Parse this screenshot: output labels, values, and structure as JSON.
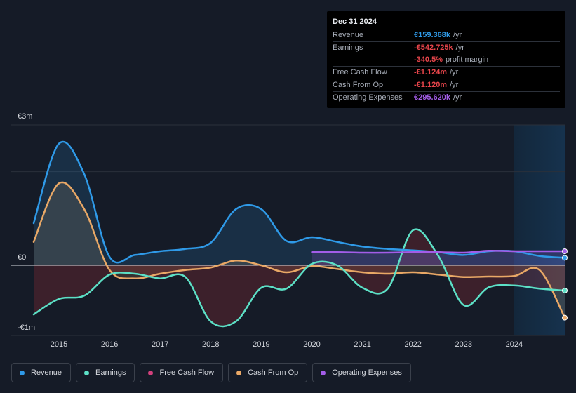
{
  "tooltip": {
    "date": "Dec 31 2024",
    "rows": [
      {
        "label": "Revenue",
        "value": "€159.368k",
        "unit": "/yr",
        "color": "#2f9ae8"
      },
      {
        "label": "Earnings",
        "value": "-€542.725k",
        "unit": "/yr",
        "color": "#e8454b"
      },
      {
        "label": "",
        "value": "-340.5%",
        "unit": "profit margin",
        "color": "#e8454b"
      },
      {
        "label": "Free Cash Flow",
        "value": "-€1.124m",
        "unit": "/yr",
        "color": "#e8454b"
      },
      {
        "label": "Cash From Op",
        "value": "-€1.120m",
        "unit": "/yr",
        "color": "#e8454b"
      },
      {
        "label": "Operating Expenses",
        "value": "€295.620k",
        "unit": "/yr",
        "color": "#a35de8"
      }
    ]
  },
  "chart_data": {
    "type": "line",
    "title": "",
    "xlabel": "",
    "ylabel": "",
    "currency_unit": "€",
    "ylim": [
      -1.5,
      3
    ],
    "xlim": [
      2014.5,
      2025.0
    ],
    "y_tick_labels": [
      {
        "value": 3,
        "label": "€3m"
      },
      {
        "value": 0,
        "label": "€0"
      },
      {
        "value": -1,
        "label": "-€1m"
      }
    ],
    "x_tick_labels": [
      "2015",
      "2016",
      "2017",
      "2018",
      "2019",
      "2020",
      "2021",
      "2022",
      "2023",
      "2024"
    ],
    "forecast_shade_start": 2024.0,
    "legend": [
      "Revenue",
      "Earnings",
      "Free Cash Flow",
      "Cash From Op",
      "Operating Expenses"
    ],
    "series": [
      {
        "name": "Revenue",
        "color": "#2f9ae8",
        "fill": true,
        "points": [
          [
            2014.5,
            0.9
          ],
          [
            2015.0,
            2.6
          ],
          [
            2015.5,
            1.95
          ],
          [
            2016.0,
            0.18
          ],
          [
            2016.5,
            0.22
          ],
          [
            2017.0,
            0.3
          ],
          [
            2017.5,
            0.35
          ],
          [
            2018.0,
            0.48
          ],
          [
            2018.5,
            1.2
          ],
          [
            2019.0,
            1.2
          ],
          [
            2019.5,
            0.52
          ],
          [
            2020.0,
            0.6
          ],
          [
            2020.5,
            0.5
          ],
          [
            2021.0,
            0.4
          ],
          [
            2021.5,
            0.35
          ],
          [
            2022.0,
            0.32
          ],
          [
            2022.5,
            0.28
          ],
          [
            2023.0,
            0.22
          ],
          [
            2023.5,
            0.3
          ],
          [
            2024.0,
            0.3
          ],
          [
            2024.5,
            0.2
          ],
          [
            2025.0,
            0.16
          ]
        ]
      },
      {
        "name": "Earnings",
        "color": "#5ce0c6",
        "fill": true,
        "points": [
          [
            2014.5,
            -1.05
          ],
          [
            2015.0,
            -0.72
          ],
          [
            2015.5,
            -0.65
          ],
          [
            2016.0,
            -0.2
          ],
          [
            2016.5,
            -0.18
          ],
          [
            2017.0,
            -0.28
          ],
          [
            2017.5,
            -0.25
          ],
          [
            2018.0,
            -1.2
          ],
          [
            2018.5,
            -1.2
          ],
          [
            2019.0,
            -0.48
          ],
          [
            2019.5,
            -0.5
          ],
          [
            2020.0,
            0.03
          ],
          [
            2020.5,
            0.0
          ],
          [
            2021.0,
            -0.48
          ],
          [
            2021.5,
            -0.5
          ],
          [
            2022.0,
            0.75
          ],
          [
            2022.5,
            0.2
          ],
          [
            2023.0,
            -0.85
          ],
          [
            2023.5,
            -0.47
          ],
          [
            2024.0,
            -0.43
          ],
          [
            2024.5,
            -0.5
          ],
          [
            2025.0,
            -0.54
          ]
        ]
      },
      {
        "name": "Free Cash Flow",
        "color": "#d2407c",
        "fill": false,
        "points": []
      },
      {
        "name": "Cash From Op",
        "color": "#e9a866",
        "fill": true,
        "points": [
          [
            2014.5,
            0.5
          ],
          [
            2015.0,
            1.75
          ],
          [
            2015.5,
            1.2
          ],
          [
            2016.0,
            -0.1
          ],
          [
            2016.5,
            -0.28
          ],
          [
            2017.0,
            -0.18
          ],
          [
            2017.5,
            -0.1
          ],
          [
            2018.0,
            -0.05
          ],
          [
            2018.5,
            0.1
          ],
          [
            2019.0,
            0.0
          ],
          [
            2019.5,
            -0.15
          ],
          [
            2020.0,
            -0.02
          ],
          [
            2020.5,
            -0.08
          ],
          [
            2021.0,
            -0.15
          ],
          [
            2021.5,
            -0.18
          ],
          [
            2022.0,
            -0.15
          ],
          [
            2022.5,
            -0.2
          ],
          [
            2023.0,
            -0.25
          ],
          [
            2023.5,
            -0.24
          ],
          [
            2024.0,
            -0.23
          ],
          [
            2024.5,
            -0.1
          ],
          [
            2025.0,
            -1.12
          ]
        ]
      },
      {
        "name": "Operating Expenses",
        "color": "#a35de8",
        "fill": true,
        "points": [
          [
            2020.0,
            0.28
          ],
          [
            2020.5,
            0.28
          ],
          [
            2021.0,
            0.27
          ],
          [
            2021.5,
            0.27
          ],
          [
            2022.0,
            0.28
          ],
          [
            2022.5,
            0.28
          ],
          [
            2023.0,
            0.27
          ],
          [
            2023.5,
            0.31
          ],
          [
            2024.0,
            0.3
          ],
          [
            2024.5,
            0.3
          ],
          [
            2025.0,
            0.3
          ]
        ]
      }
    ]
  }
}
